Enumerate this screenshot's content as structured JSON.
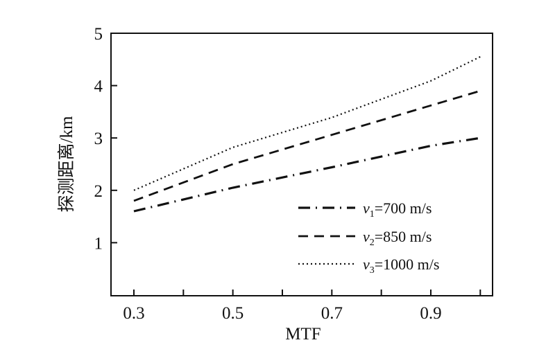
{
  "chart_data": {
    "type": "line",
    "title": "",
    "xlabel": "MTF",
    "ylabel": "探测距离/km",
    "xlim": [
      0.25,
      1.02
    ],
    "ylim": [
      0,
      5
    ],
    "xticks": [
      0.3,
      0.4,
      0.5,
      0.6,
      0.7,
      0.8,
      0.9,
      1.0
    ],
    "xtick_labels": [
      "0.3",
      "",
      "0.5",
      "",
      "0.7",
      "",
      "0.9",
      ""
    ],
    "yticks": [
      1,
      2,
      3,
      4,
      5
    ],
    "ytick_labels": [
      "1",
      "2",
      "3",
      "4",
      "5"
    ],
    "grid": false,
    "legend_position": "bottom-right",
    "x": [
      0.3,
      0.5,
      0.7,
      0.9,
      1.0
    ],
    "series": [
      {
        "name": "v1=700 m/s",
        "var": "v",
        "sub": "1",
        "rest": "=700 m/s",
        "style": "dash-dot",
        "values": [
          1.6,
          2.05,
          2.44,
          2.85,
          3.0
        ]
      },
      {
        "name": "v2=850 m/s",
        "var": "v",
        "sub": "2",
        "rest": "=850 m/s",
        "style": "dashed",
        "values": [
          1.8,
          2.5,
          3.06,
          3.62,
          3.9
        ]
      },
      {
        "name": "v3=1000 m/s",
        "var": "v",
        "sub": "3",
        "rest": "=1000 m/s",
        "style": "dotted",
        "values": [
          2.0,
          2.82,
          3.39,
          4.09,
          4.55
        ]
      }
    ]
  }
}
